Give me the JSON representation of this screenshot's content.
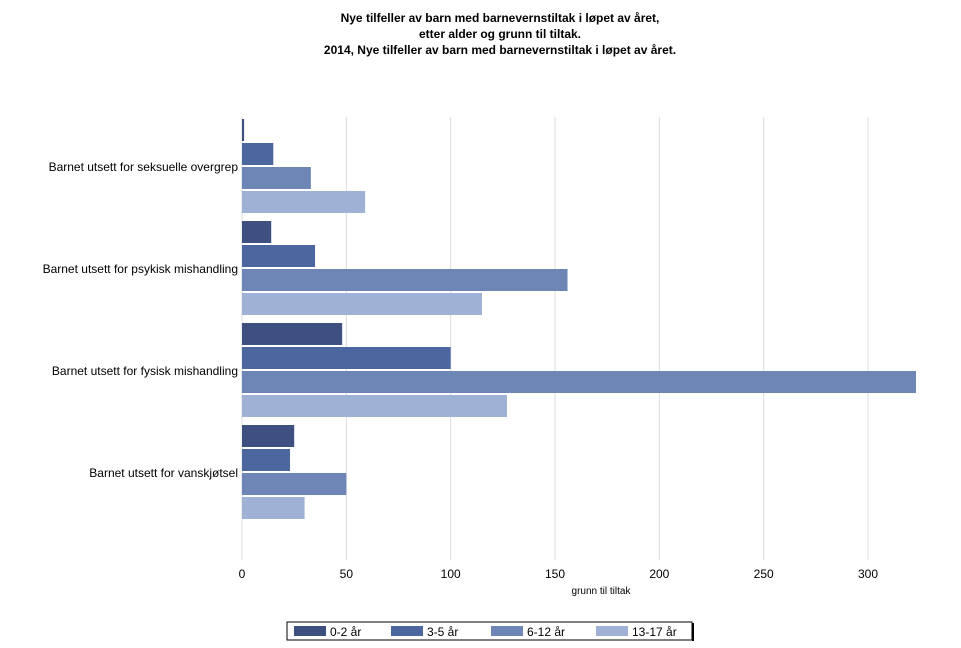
{
  "chart_data": {
    "type": "bar",
    "orientation": "horizontal",
    "title_lines": [
      "Nye tilfeller av barn med barnevernstiltak i løpet av året,",
      "etter alder og grunn til tiltak.",
      "2014, Nye tilfeller av barn med barnevernstiltak i løpet av året."
    ],
    "categories": [
      "Barnet utsett for seksuelle overgrep",
      "Barnet utsett for psykisk mishandling",
      "Barnet utsett for fysisk mishandling",
      "Barnet utsett for vanskjøtsel"
    ],
    "series": [
      {
        "name": "0-2 år",
        "color": "#3d5080",
        "values": [
          1,
          14,
          48,
          25
        ]
      },
      {
        "name": "3-5 år",
        "color": "#4c66a0",
        "values": [
          15,
          35,
          100,
          23
        ]
      },
      {
        "name": "6-12 år",
        "color": "#6d86b6",
        "values": [
          33,
          156,
          323,
          50
        ]
      },
      {
        "name": "13-17 år",
        "color": "#a0b1d6",
        "values": [
          59,
          115,
          127,
          30
        ]
      }
    ],
    "xlabel": "grunn til tiltak",
    "xlim": [
      0,
      345
    ],
    "xticks": [
      "0",
      "50",
      "100",
      "150",
      "200",
      "250",
      "300"
    ],
    "grid": true,
    "legend_position": "bottom"
  }
}
